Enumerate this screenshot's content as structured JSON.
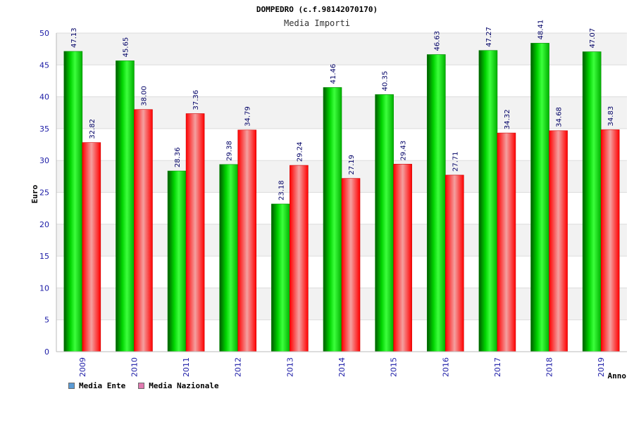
{
  "chart_data": {
    "type": "bar",
    "title": "DOMPEDRO (c.f.98142070170)",
    "subtitle": "Media Importi",
    "xlabel": "Anno",
    "ylabel": "Euro",
    "ylim": [
      0,
      50
    ],
    "yticks": [
      "0",
      "5",
      "10",
      "15",
      "20",
      "25",
      "30",
      "35",
      "40",
      "45",
      "50"
    ],
    "categories": [
      "2009",
      "2010",
      "2011",
      "2012",
      "2013",
      "2014",
      "2015",
      "2016",
      "2017",
      "2018",
      "2019"
    ],
    "series": [
      {
        "name": "Media Ente",
        "values": [
          47.13,
          45.65,
          28.36,
          29.38,
          23.18,
          41.46,
          40.35,
          46.63,
          47.27,
          48.41,
          47.07
        ],
        "labels": [
          "47.13",
          "45.65",
          "28.36",
          "29.38",
          "23.18",
          "41.46",
          "40.35",
          "46.63",
          "47.27",
          "48.41",
          "47.07"
        ],
        "color": "#00c000",
        "legend_color": "#5b9bd5"
      },
      {
        "name": "Media Nazionale",
        "values": [
          32.82,
          38.0,
          37.36,
          34.79,
          29.24,
          27.19,
          29.43,
          27.71,
          34.32,
          34.68,
          34.83
        ],
        "labels": [
          "32.82",
          "38.00",
          "37.36",
          "34.79",
          "29.24",
          "27.19",
          "29.43",
          "27.71",
          "34.32",
          "34.68",
          "34.83"
        ],
        "color": "#ff1a1a",
        "legend_color": "#e07ab0"
      }
    ],
    "grid": true,
    "legend_position": "bottom-left"
  }
}
